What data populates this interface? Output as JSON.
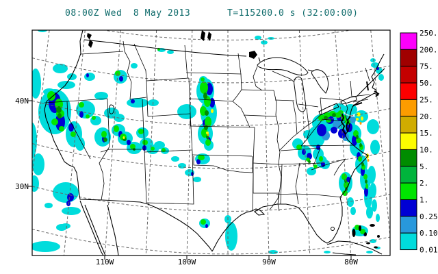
{
  "title": {
    "datetime": "08:00Z Wed  8 May 2013",
    "elapsed": "T=115200.0 s (32:00:00)",
    "color": "#0f6b6b"
  },
  "axes": {
    "lat": [
      {
        "label": "40N"
      },
      {
        "label": "30N"
      }
    ],
    "lon": [
      {
        "label": "110W"
      },
      {
        "label": "100W"
      },
      {
        "label": "90W"
      },
      {
        "label": "80W"
      }
    ]
  },
  "colorbar": {
    "labels": [
      "250.",
      "200.",
      "75.",
      "50.",
      "25.",
      "20.",
      "15.",
      "10.",
      "5.",
      "2.",
      "1.",
      "0.25",
      "0.10",
      "0.01"
    ],
    "colors": [
      "#fc00fc",
      "#a00000",
      "#c40000",
      "#fc0000",
      "#fc9c00",
      "#d0ac00",
      "#fcfc00",
      "#008c00",
      "#00b43c",
      "#00e400",
      "#0000d4",
      "#2898dc",
      "#00dcdc"
    ]
  },
  "map": {
    "grid_color": "#666666",
    "border_color": "#000000"
  }
}
